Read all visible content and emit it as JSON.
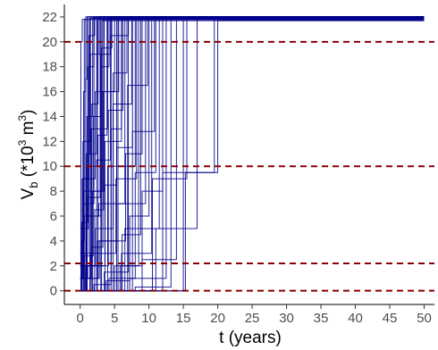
{
  "chart_data": {
    "type": "line",
    "title": "",
    "xlabel": "t (years)",
    "ylabel": {
      "base": "V",
      "subscript": "b",
      "units_prefix": " (*10",
      "exp1": "3",
      "units_mid": " m",
      "exp2": "3",
      "units_suffix": ")"
    },
    "xlim": [
      -2.3,
      51.5
    ],
    "ylim": [
      -1.1,
      23.0
    ],
    "xticks": [
      0,
      5,
      10,
      15,
      20,
      25,
      30,
      35,
      40,
      45,
      50
    ],
    "yticks": [
      0,
      2,
      4,
      6,
      8,
      10,
      12,
      14,
      16,
      18,
      20,
      22
    ],
    "grid": false,
    "legend": "none",
    "reference_lines": [
      {
        "axis": "y",
        "value": 0,
        "style": "dashed",
        "color": "#8b0000"
      },
      {
        "axis": "y",
        "value": 2.2,
        "style": "dashed",
        "color": "#8b0000"
      },
      {
        "axis": "y",
        "value": 10,
        "style": "dashed",
        "color": "#8b0000"
      },
      {
        "axis": "y",
        "value": 20,
        "style": "dashed",
        "color": "#8b0000"
      }
    ],
    "series_color": "#00008b",
    "series_style": "step",
    "series": [
      {
        "x": [
          0,
          0.3,
          1.2,
          50
        ],
        "y": [
          0,
          9,
          22,
          22
        ]
      },
      {
        "x": [
          0,
          0.2,
          0.6,
          50
        ],
        "y": [
          0,
          4,
          21.8,
          21.8
        ]
      },
      {
        "x": [
          0,
          0.4,
          1.5,
          50
        ],
        "y": [
          1,
          12,
          22,
          22
        ]
      },
      {
        "x": [
          0,
          0.5,
          2.0,
          50
        ],
        "y": [
          0,
          7,
          21.9,
          21.9
        ]
      },
      {
        "x": [
          0,
          0.8,
          1.0,
          50
        ],
        "y": [
          0,
          17,
          22,
          22
        ]
      },
      {
        "x": [
          0,
          0.3,
          0.9,
          2.5,
          50
        ],
        "y": [
          0,
          3,
          10,
          21.8,
          21.8
        ]
      },
      {
        "x": [
          0,
          0.6,
          3.0,
          50
        ],
        "y": [
          2,
          6,
          22,
          22
        ]
      },
      {
        "x": [
          0,
          1.0,
          1.8,
          50
        ],
        "y": [
          0,
          14,
          21.9,
          21.9
        ]
      },
      {
        "x": [
          0,
          0.2,
          0.5,
          3.5,
          50
        ],
        "y": [
          0,
          1,
          8,
          22,
          22
        ]
      },
      {
        "x": [
          0,
          1.2,
          2.4,
          50
        ],
        "y": [
          5,
          11,
          22,
          22
        ]
      },
      {
        "x": [
          0,
          0.7,
          1.6,
          4.0,
          50
        ],
        "y": [
          0,
          2,
          13,
          21.8,
          21.8
        ]
      },
      {
        "x": [
          0,
          1.5,
          2.8,
          50
        ],
        "y": [
          0,
          19,
          22,
          22
        ]
      },
      {
        "x": [
          0,
          2.0,
          4.5,
          50
        ],
        "y": [
          0,
          0.5,
          21.9,
          21.9
        ]
      },
      {
        "x": [
          0,
          0.4,
          2.2,
          5.0,
          50
        ],
        "y": [
          3,
          9,
          16,
          22,
          22
        ]
      },
      {
        "x": [
          0,
          1.8,
          3.2,
          50
        ],
        "y": [
          0,
          8,
          21.7,
          21.7
        ]
      },
      {
        "x": [
          0,
          2.5,
          5.5,
          50
        ],
        "y": [
          0,
          4,
          22,
          22
        ]
      },
      {
        "x": [
          0,
          1.1,
          3.6,
          6.0,
          50
        ],
        "y": [
          1,
          2,
          12,
          21.9,
          21.9
        ]
      },
      {
        "x": [
          0,
          3.0,
          4.2,
          50
        ],
        "y": [
          0,
          18,
          22,
          22
        ]
      },
      {
        "x": [
          0,
          0.9,
          2.7,
          6.5,
          50
        ],
        "y": [
          0,
          6,
          7,
          21.8,
          21.8
        ]
      },
      {
        "x": [
          0,
          3.5,
          7.0,
          50
        ],
        "y": [
          0,
          1.5,
          22,
          22
        ]
      },
      {
        "x": [
          0,
          2.2,
          4.8,
          7.5,
          50
        ],
        "y": [
          2,
          5,
          15,
          22,
          22
        ]
      },
      {
        "x": [
          0,
          4.0,
          8.0,
          50
        ],
        "y": [
          0,
          10,
          21.9,
          21.9
        ]
      },
      {
        "x": [
          0,
          1.4,
          5.2,
          8.2,
          50
        ],
        "y": [
          0,
          3,
          9,
          22,
          22
        ]
      },
      {
        "x": [
          0,
          4.5,
          6.0,
          50
        ],
        "y": [
          0,
          13,
          21.8,
          21.8
        ]
      },
      {
        "x": [
          0,
          5.0,
          8.5,
          50
        ],
        "y": [
          0,
          2,
          22,
          22
        ]
      },
      {
        "x": [
          0,
          2.8,
          6.6,
          9.0,
          50
        ],
        "y": [
          1,
          4,
          11,
          21.9,
          21.9
        ]
      },
      {
        "x": [
          0,
          5.5,
          9.5,
          50
        ],
        "y": [
          0,
          7,
          22,
          22
        ]
      },
      {
        "x": [
          0,
          3.8,
          7.2,
          10.0,
          50
        ],
        "y": [
          0,
          0.8,
          6,
          21.8,
          21.8
        ]
      },
      {
        "x": [
          0,
          6.0,
          10.4,
          50
        ],
        "y": [
          0,
          3,
          22,
          22
        ]
      },
      {
        "x": [
          0,
          4.2,
          8.0,
          11.0,
          50
        ],
        "y": [
          0,
          1,
          9.5,
          22,
          22
        ]
      },
      {
        "x": [
          0,
          6.5,
          11.5,
          50
        ],
        "y": [
          0,
          5,
          21.9,
          21.9
        ]
      },
      {
        "x": [
          0,
          5.8,
          9.0,
          12.0,
          50
        ],
        "y": [
          0,
          2,
          8,
          22,
          22
        ]
      },
      {
        "x": [
          0,
          7.2,
          12.5,
          50
        ],
        "y": [
          0,
          1,
          21.8,
          21.8
        ]
      },
      {
        "x": [
          0,
          8.0,
          13.2,
          50
        ],
        "y": [
          0,
          0.3,
          22,
          22
        ]
      },
      {
        "x": [
          0,
          9.0,
          14.0,
          50
        ],
        "y": [
          0,
          2.5,
          21.9,
          21.9
        ]
      },
      {
        "x": [
          0,
          9.8,
          15.0,
          50
        ],
        "y": [
          0,
          0,
          22,
          22
        ]
      },
      {
        "x": [
          0,
          10.5,
          15.5,
          50
        ],
        "y": [
          0,
          9,
          21.8,
          21.8
        ]
      },
      {
        "x": [
          0,
          11.0,
          17.0,
          50
        ],
        "y": [
          0,
          5,
          22,
          22
        ]
      },
      {
        "x": [
          0,
          12.0,
          19.5,
          50
        ],
        "y": [
          0,
          9.5,
          22,
          22
        ]
      },
      {
        "x": [
          0,
          13.0,
          15.3,
          20.0,
          50
        ],
        "y": [
          0,
          0,
          9.5,
          21.7,
          21.7
        ]
      },
      {
        "x": [
          0,
          0.1,
          0.3,
          50
        ],
        "y": [
          0,
          20,
          21.8,
          21.8
        ]
      },
      {
        "x": [
          0,
          0.5,
          0.8,
          50
        ],
        "y": [
          1,
          16,
          22,
          22
        ]
      },
      {
        "x": [
          0,
          0.9,
          1.4,
          50
        ],
        "y": [
          0,
          11,
          21.9,
          21.9
        ]
      },
      {
        "x": [
          0,
          1.3,
          2.1,
          50
        ],
        "y": [
          3,
          20.5,
          22,
          22
        ]
      },
      {
        "x": [
          0,
          1.7,
          2.6,
          50
        ],
        "y": [
          0,
          15,
          21.8,
          21.8
        ]
      },
      {
        "x": [
          0,
          2.1,
          3.4,
          50
        ],
        "y": [
          0,
          6.5,
          22,
          22
        ]
      },
      {
        "x": [
          0,
          2.6,
          3.9,
          50
        ],
        "y": [
          1,
          12.5,
          21.9,
          21.9
        ]
      },
      {
        "x": [
          0,
          3.1,
          4.6,
          50
        ],
        "y": [
          0,
          19.5,
          22,
          22
        ]
      },
      {
        "x": [
          0,
          3.6,
          5.3,
          50
        ],
        "y": [
          0,
          8.5,
          21.8,
          21.8
        ]
      },
      {
        "x": [
          0,
          4.1,
          6.2,
          50
        ],
        "y": [
          2,
          14.5,
          22,
          22
        ]
      },
      {
        "x": [
          0,
          4.8,
          6.8,
          50
        ],
        "y": [
          0,
          17.5,
          21.9,
          21.9
        ]
      },
      {
        "x": [
          0,
          5.3,
          7.6,
          50
        ],
        "y": [
          0,
          11.5,
          22,
          22
        ]
      },
      {
        "x": [
          0,
          6.1,
          8.8,
          50
        ],
        "y": [
          0,
          4.5,
          21.8,
          21.8
        ]
      },
      {
        "x": [
          0,
          6.9,
          9.8,
          50
        ],
        "y": [
          0,
          16.5,
          22,
          22
        ]
      },
      {
        "x": [
          0,
          7.6,
          10.8,
          50
        ],
        "y": [
          0,
          12.8,
          21.9,
          21.9
        ]
      },
      {
        "x": [
          0,
          0.2,
          1.1,
          2.0,
          50
        ],
        "y": [
          0,
          5.5,
          18,
          22,
          22
        ]
      },
      {
        "x": [
          0,
          0.6,
          1.9,
          3.0,
          50
        ],
        "y": [
          0,
          2.8,
          14,
          21.8,
          21.8
        ]
      },
      {
        "x": [
          0,
          1.0,
          2.9,
          4.4,
          50
        ],
        "y": [
          0,
          7.5,
          19,
          22,
          22
        ]
      },
      {
        "x": [
          0,
          1.6,
          3.3,
          5.6,
          50
        ],
        "y": [
          1,
          3.5,
          16,
          21.9,
          21.9
        ]
      },
      {
        "x": [
          0,
          2.4,
          4.4,
          7.0,
          50
        ],
        "y": [
          0,
          10.5,
          20.5,
          22,
          22
        ]
      }
    ]
  }
}
